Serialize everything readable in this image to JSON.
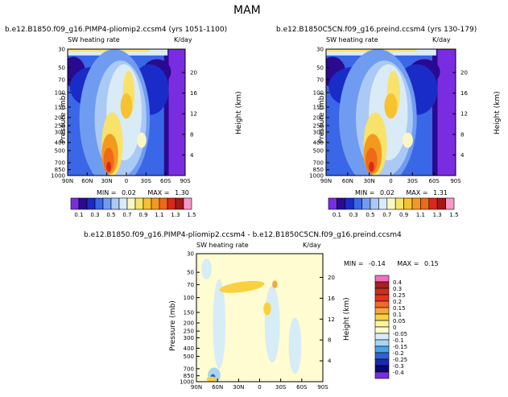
{
  "figure": {
    "title": "MAM"
  },
  "chart_data": [
    {
      "type": "heatmap",
      "title": "b.e12.B1850.f09_g16.PIMP4-pliomip2.ccsm4 (yrs 1051-1100)",
      "field": "SW heating rate",
      "units": "K/day",
      "xlabel": "",
      "ylabel": "Pressure (mb)",
      "ylabel_right": "Height (km)",
      "x_ticks": [
        "90N",
        "60N",
        "30N",
        "0",
        "30S",
        "60S",
        "90S"
      ],
      "y_ticks": [
        "30",
        "50",
        "70",
        "100",
        "150",
        "200",
        "250",
        "300",
        "400",
        "500",
        "700",
        "850",
        "1000"
      ],
      "y_ticks_right": [
        "20",
        "16",
        "12",
        "8",
        "4"
      ],
      "min_label": "MIN =",
      "min": "0.02",
      "max_label": "MAX =",
      "max": "1.30",
      "contour_levels": [
        "0.1",
        "0.3",
        "0.5",
        "0.7",
        "0.9",
        "1.1",
        "1.3",
        "1.5"
      ]
    },
    {
      "type": "heatmap",
      "title": "b.e12.B1850C5CN.f09_g16.preind.ccsm4 (yrs 130-179)",
      "field": "SW heating rate",
      "units": "K/day",
      "xlabel": "",
      "ylabel": "Pressure (mb)",
      "ylabel_right": "Height (km)",
      "x_ticks": [
        "90N",
        "60N",
        "30N",
        "0",
        "30S",
        "60S",
        "90S"
      ],
      "y_ticks": [
        "30",
        "50",
        "70",
        "100",
        "150",
        "200",
        "250",
        "300",
        "400",
        "500",
        "700",
        "850",
        "1000"
      ],
      "y_ticks_right": [
        "20",
        "16",
        "12",
        "8",
        "4"
      ],
      "min_label": "MIN =",
      "min": "0.02",
      "max_label": "MAX =",
      "max": "1.31",
      "contour_levels": [
        "0.1",
        "0.3",
        "0.5",
        "0.7",
        "0.9",
        "1.1",
        "1.3",
        "1.5"
      ]
    },
    {
      "type": "heatmap",
      "title": "b.e12.B1850.f09_g16.PIMP4-pliomip2.ccsm4 - b.e12.B1850C5CN.f09_g16.preind.ccsm4",
      "field": "SW heating rate",
      "units": "K/day",
      "xlabel": "",
      "ylabel": "Pressure (mb)",
      "ylabel_right": "Height (km)",
      "x_ticks": [
        "90N",
        "60N",
        "30N",
        "0",
        "30S",
        "60S",
        "90S"
      ],
      "y_ticks": [
        "30",
        "50",
        "70",
        "100",
        "150",
        "200",
        "250",
        "300",
        "400",
        "500",
        "700",
        "850",
        "1000"
      ],
      "y_ticks_right": [
        "20",
        "16",
        "12",
        "8",
        "4"
      ],
      "min_label": "MIN =",
      "min": "-0.14",
      "max_label": "MAX =",
      "max": "0.15",
      "contour_levels": [
        "0.4",
        "0.3",
        "0.25",
        "0.2",
        "0.15",
        "0.1",
        "0.05",
        "0",
        "-0.05",
        "-0.1",
        "-0.15",
        "-0.2",
        "-0.25",
        "-0.3",
        "-0.4"
      ]
    }
  ],
  "colors": {
    "abs_scale": [
      "#7a2de0",
      "#2a0a90",
      "#1a2cc8",
      "#3a66e8",
      "#6f9cf0",
      "#aac9f5",
      "#d9ebf7",
      "#fbf7c4",
      "#f8e26a",
      "#f7c230",
      "#f39a1e",
      "#ee6a18",
      "#d9281a",
      "#a31818",
      "#f49ac8"
    ],
    "diff_scale": [
      "#f070c0",
      "#a82020",
      "#c83020",
      "#e83020",
      "#f06a2a",
      "#f6a640",
      "#f9d040",
      "#fdf3a0",
      "#fefcd0",
      "#d6ecf7",
      "#a6d6f4",
      "#4aa4ec",
      "#3060d8",
      "#1a2aa8",
      "#0a0870",
      "#7a2de0"
    ]
  }
}
